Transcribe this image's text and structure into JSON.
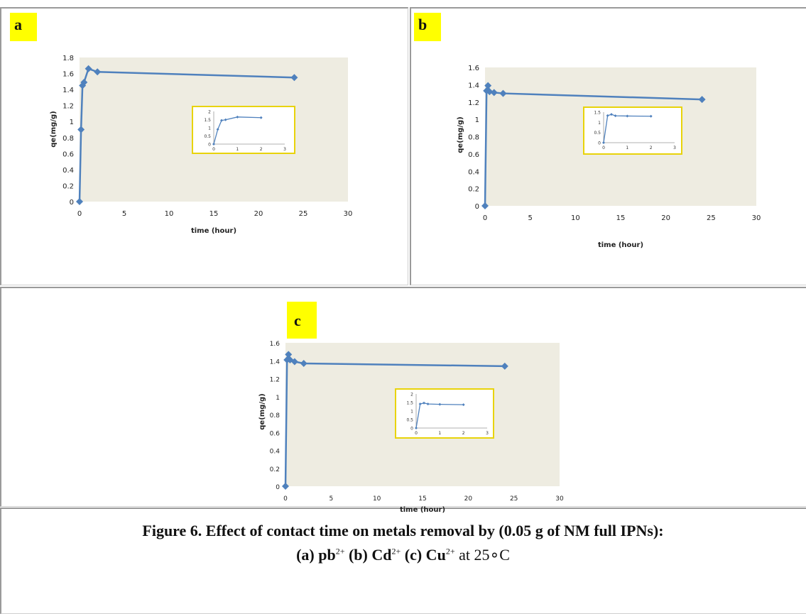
{
  "chart_data": [
    {
      "panel": "a",
      "type": "scatter",
      "xlabel": "time (hour)",
      "ylabel": "qe(mg/g)",
      "xlim": [
        0,
        30
      ],
      "ylim": [
        0,
        1.8
      ],
      "xticks": [
        "0",
        "5",
        "10",
        "15",
        "20",
        "25",
        "30"
      ],
      "yticks": [
        "0",
        "0.2",
        "0.4",
        "0.6",
        "0.8",
        "1",
        "1.2",
        "1.4",
        "1.6",
        "1.8"
      ],
      "x": [
        0,
        0.17,
        0.33,
        0.5,
        1,
        2,
        24
      ],
      "y": [
        0,
        0.9,
        1.45,
        1.49,
        1.66,
        1.62,
        1.55
      ],
      "grid": false,
      "inset": {
        "xlim": [
          0,
          3
        ],
        "ylim": [
          0,
          2
        ],
        "xticks": [
          "0",
          "1",
          "2",
          "3"
        ],
        "yticks": [
          "0",
          "0.5",
          "1",
          "1.5",
          "2"
        ],
        "x": [
          0,
          0.17,
          0.33,
          0.5,
          1,
          2
        ],
        "y": [
          0,
          0.9,
          1.45,
          1.49,
          1.66,
          1.62
        ]
      }
    },
    {
      "panel": "b",
      "type": "scatter",
      "xlabel": "time (hour)",
      "ylabel": "qe(mg/g)",
      "xlim": [
        0,
        30
      ],
      "ylim": [
        0,
        1.6
      ],
      "xticks": [
        "0",
        "5",
        "10",
        "15",
        "20",
        "25",
        "30"
      ],
      "yticks": [
        "0",
        "0.2",
        "0.4",
        "0.6",
        "0.8",
        "1",
        "1.2",
        "1.4",
        "1.6"
      ],
      "x": [
        0,
        0.17,
        0.33,
        0.5,
        1,
        2,
        24
      ],
      "y": [
        0,
        1.33,
        1.39,
        1.32,
        1.31,
        1.3,
        1.23
      ],
      "grid": false,
      "inset": {
        "xlim": [
          0,
          3
        ],
        "ylim": [
          0,
          1.5
        ],
        "xticks": [
          "0",
          "1",
          "2",
          "3"
        ],
        "yticks": [
          "0",
          "0.5",
          "1",
          "1.5"
        ],
        "x": [
          0,
          0.17,
          0.33,
          0.5,
          1,
          2
        ],
        "y": [
          0,
          1.33,
          1.39,
          1.32,
          1.31,
          1.3
        ]
      }
    },
    {
      "panel": "c",
      "type": "scatter",
      "xlabel": "time (hour)",
      "ylabel": "qe(mg/g)",
      "xlim": [
        0,
        30
      ],
      "ylim": [
        0,
        1.6
      ],
      "xticks": [
        "0",
        "5",
        "10",
        "15",
        "20",
        "25",
        "30"
      ],
      "yticks": [
        "0",
        "0.2",
        "0.4",
        "0.6",
        "0.8",
        "1",
        "1.2",
        "1.4",
        "1.6"
      ],
      "x": [
        0,
        0.17,
        0.33,
        0.5,
        1,
        2,
        24
      ],
      "y": [
        0,
        1.41,
        1.47,
        1.41,
        1.39,
        1.37,
        1.34
      ],
      "grid": false,
      "inset": {
        "xlim": [
          0,
          3
        ],
        "ylim": [
          0,
          2
        ],
        "xticks": [
          "0",
          "1",
          "2",
          "3"
        ],
        "yticks": [
          "0",
          "0.5",
          "1",
          "1.5",
          "2"
        ],
        "x": [
          0,
          0.17,
          0.33,
          0.5,
          1,
          2
        ],
        "y": [
          0,
          1.41,
          1.47,
          1.41,
          1.39,
          1.37
        ]
      }
    }
  ],
  "panel_labels": {
    "a": "a",
    "b": "b",
    "c": "c"
  },
  "caption": {
    "line1": "Figure 6. Effect of contact time on metals removal by (0.05 g of NM full IPNs):",
    "a_label": "(a) pb",
    "a_sup": "2+",
    "b_label": " (b) Cd",
    "b_sup": "2+",
    "c_label": " (c) Cu",
    "c_sup": "2+",
    "temp": " at 25∘C"
  },
  "colors": {
    "plot_bg": "#eeece1",
    "series": "#4f81bd",
    "inset_border": "#e8d30a",
    "tag": "#ffff00"
  }
}
